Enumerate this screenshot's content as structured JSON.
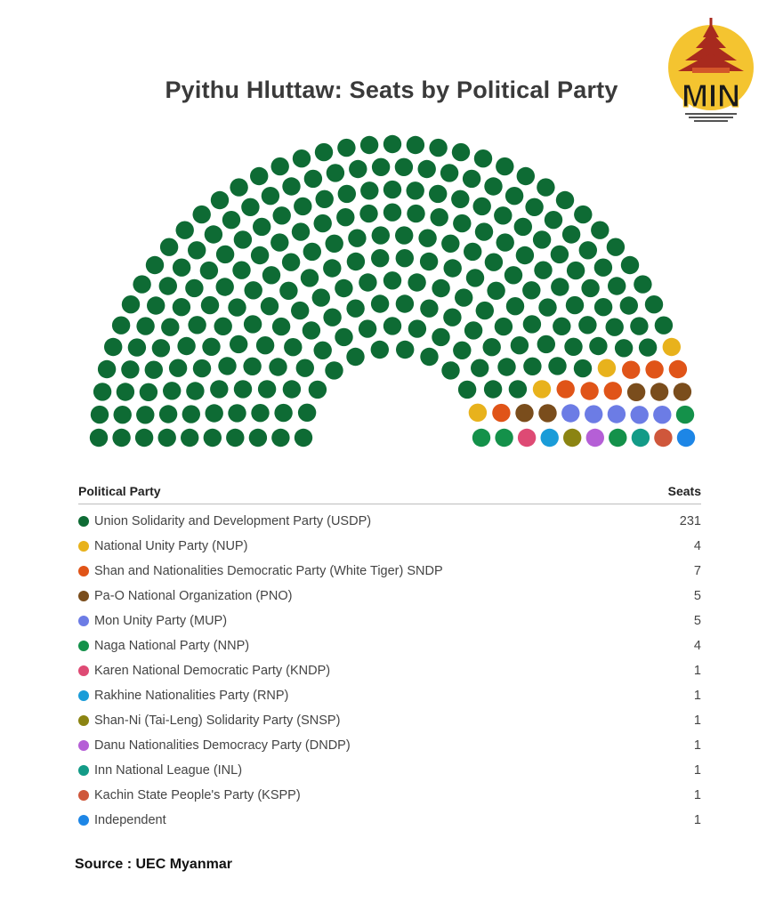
{
  "chart_data": {
    "type": "parliament",
    "title": "Pyithu Hluttaw: Seats by Political Party",
    "column_headers": {
      "party": "Political Party",
      "seats": "Seats"
    },
    "series": [
      {
        "name": "Union Solidarity and Development Party (USDP)",
        "value": 231,
        "color": "#0e6b34"
      },
      {
        "name": "National Unity Party (NUP)",
        "value": 4,
        "color": "#e8b21c"
      },
      {
        "name": "Shan and Nationalities Democratic Party (White Tiger) SNDP",
        "value": 7,
        "color": "#e05418"
      },
      {
        "name": "Pa-O National Organization (PNO)",
        "value": 5,
        "color": "#7a4d1c"
      },
      {
        "name": "Mon Unity Party (MUP)",
        "value": 5,
        "color": "#6c7ce5"
      },
      {
        "name": "Naga National Party (NNP)",
        "value": 4,
        "color": "#14914a"
      },
      {
        "name": "Karen National Democratic Party (KNDP)",
        "value": 1,
        "color": "#de4a74"
      },
      {
        "name": "Rakhine Nationalities Party (RNP)",
        "value": 1,
        "color": "#1a9cd8"
      },
      {
        "name": "Shan-Ni (Tai-Leng) Solidarity Party (SNSP)",
        "value": 1,
        "color": "#8b8412"
      },
      {
        "name": "Danu Nationalities Democracy Party (DNDP)",
        "value": 1,
        "color": "#b55fd6"
      },
      {
        "name": "Inn National League (INL)",
        "value": 1,
        "color": "#139b87"
      },
      {
        "name": "Kachin State People's Party (KSPP)",
        "value": 1,
        "color": "#cf573b"
      },
      {
        "name": "Independent",
        "value": 1,
        "color": "#1d86e6"
      }
    ]
  },
  "source": "Source : UEC Myanmar",
  "logo": {
    "text": "MIN",
    "icon": "pagoda-logo-icon",
    "colors": {
      "circle": "#f4c430",
      "roof": "#a82a1e",
      "lettering": "#1a1a1a"
    }
  }
}
